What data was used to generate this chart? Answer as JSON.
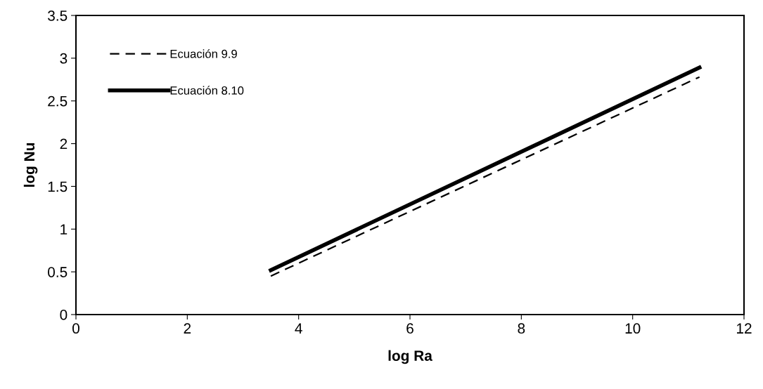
{
  "chart_data": {
    "type": "line",
    "xlabel": "log Ra",
    "ylabel": "log Nu",
    "xlim": [
      0,
      12
    ],
    "xticks": [
      0,
      2,
      4,
      6,
      8,
      10,
      12
    ],
    "ylim": [
      0,
      3.5
    ],
    "yticks": [
      0,
      0.5,
      1,
      1.5,
      2,
      2.5,
      3,
      3.5
    ],
    "grid": false,
    "legend": "top left",
    "marker": "none",
    "x": [
      3.5,
      11.2
    ],
    "series": [
      {
        "name": "Ecuación 9.9",
        "color": "#000000",
        "line_style": "dashed",
        "values": [
          0.45,
          2.78
        ]
      },
      {
        "name": "Ecuación 8.10",
        "color": "#000000",
        "line_style": "solid",
        "values": [
          0.52,
          2.89
        ]
      }
    ]
  }
}
